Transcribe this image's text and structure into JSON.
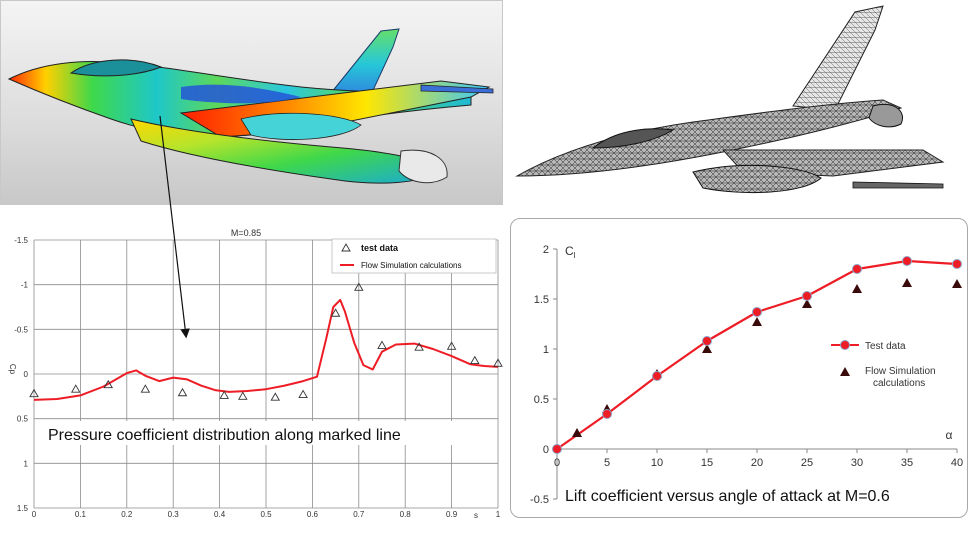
{
  "colors": {
    "red_curve": "#ee1c24",
    "grid": "#8c8c8c",
    "marker_dark": "#3a0a0a",
    "marker_dot_edge": "#8ea0c8"
  },
  "chart_data": [
    {
      "type": "scatter",
      "title": "M=0.85",
      "xlabel": "s",
      "ylabel": "Cp",
      "xlim": [
        0,
        1
      ],
      "ylim": [
        1.5,
        -1.5
      ],
      "y_inverted": true,
      "grid": true,
      "legend_position": "top-right",
      "x_ticks": [
        {
          "value": 0,
          "label": "0"
        },
        {
          "value": 0.1,
          "label": "0.1"
        },
        {
          "value": 0.2,
          "label": "0.2"
        },
        {
          "value": 0.3,
          "label": "0.3"
        },
        {
          "value": 0.4,
          "label": "0.4"
        },
        {
          "value": 0.5,
          "label": "0.5"
        },
        {
          "value": 0.6,
          "label": "0.6"
        },
        {
          "value": 0.7,
          "label": "0.7"
        },
        {
          "value": 0.8,
          "label": "0.8"
        },
        {
          "value": 0.9,
          "label": "0.9"
        },
        {
          "value": 1,
          "label": "1"
        }
      ],
      "y_ticks": [
        {
          "value": -1.5,
          "label": "-1.5"
        },
        {
          "value": -1,
          "label": "-1"
        },
        {
          "value": -0.5,
          "label": "-0.5"
        },
        {
          "value": 0,
          "label": "0"
        },
        {
          "value": 0.5,
          "label": "0.5"
        },
        {
          "value": 1,
          "label": "1"
        },
        {
          "value": 1.5,
          "label": "1.5"
        }
      ],
      "annotation": "Pressure coefficient distribution along marked line",
      "series": [
        {
          "name": "test data",
          "kind": "scatter",
          "marker": "triangle-open",
          "x": [
            0.0,
            0.09,
            0.16,
            0.24,
            0.32,
            0.41,
            0.45,
            0.52,
            0.58,
            0.65,
            0.7,
            0.75,
            0.83,
            0.9,
            0.95,
            1.0
          ],
          "y": [
            0.22,
            0.17,
            0.12,
            0.17,
            0.21,
            0.24,
            0.25,
            0.26,
            0.23,
            -0.68,
            -0.97,
            -0.32,
            -0.3,
            -0.31,
            -0.15,
            -0.12
          ]
        },
        {
          "name": "Flow Simulation calculations",
          "kind": "line",
          "x": [
            0.0,
            0.05,
            0.1,
            0.15,
            0.18,
            0.2,
            0.22,
            0.24,
            0.27,
            0.3,
            0.33,
            0.36,
            0.39,
            0.42,
            0.46,
            0.5,
            0.54,
            0.58,
            0.61,
            0.63,
            0.645,
            0.66,
            0.67,
            0.69,
            0.71,
            0.73,
            0.75,
            0.78,
            0.82,
            0.86,
            0.9,
            0.94,
            0.97,
            1.0
          ],
          "y": [
            0.29,
            0.28,
            0.24,
            0.14,
            0.05,
            -0.01,
            -0.04,
            0.02,
            0.08,
            0.04,
            0.06,
            0.13,
            0.18,
            0.2,
            0.19,
            0.17,
            0.13,
            0.08,
            0.03,
            -0.4,
            -0.75,
            -0.83,
            -0.7,
            -0.35,
            -0.1,
            -0.05,
            -0.25,
            -0.33,
            -0.34,
            -0.28,
            -0.2,
            -0.11,
            -0.09,
            -0.08
          ]
        }
      ]
    },
    {
      "type": "line",
      "title": "",
      "xlabel": "α",
      "ylabel": "C",
      "ylabel_sub": "l",
      "xlim": [
        0,
        40
      ],
      "ylim": [
        -0.5,
        2
      ],
      "grid": false,
      "legend_position": "middle-right",
      "x_ticks": [
        {
          "value": 0,
          "label": "0"
        },
        {
          "value": 5,
          "label": "5"
        },
        {
          "value": 10,
          "label": "10"
        },
        {
          "value": 15,
          "label": "15"
        },
        {
          "value": 20,
          "label": "20"
        },
        {
          "value": 25,
          "label": "25"
        },
        {
          "value": 30,
          "label": "30"
        },
        {
          "value": 35,
          "label": "35"
        },
        {
          "value": 40,
          "label": "40"
        }
      ],
      "y_ticks": [
        {
          "value": -0.5,
          "label": "-0.5"
        },
        {
          "value": 0,
          "label": "0"
        },
        {
          "value": 0.5,
          "label": "0.5"
        },
        {
          "value": 1,
          "label": "1"
        },
        {
          "value": 1.5,
          "label": "1.5"
        },
        {
          "value": 2,
          "label": "2"
        }
      ],
      "annotation": "Lift coefficient versus angle of attack at M=0.6",
      "series": [
        {
          "name": "Test data",
          "kind": "line-dots",
          "x": [
            0,
            5,
            10,
            15,
            20,
            25,
            30,
            35,
            40
          ],
          "y": [
            0.0,
            0.35,
            0.73,
            1.08,
            1.37,
            1.53,
            1.8,
            1.88,
            1.85
          ]
        },
        {
          "name": "Flow Simulation calculations",
          "kind": "scatter",
          "marker": "triangle-filled",
          "x": [
            2,
            5,
            10,
            15,
            20,
            25,
            30,
            35,
            40
          ],
          "y": [
            0.16,
            0.4,
            0.75,
            1.0,
            1.27,
            1.45,
            1.6,
            1.66,
            1.65
          ]
        }
      ]
    }
  ]
}
